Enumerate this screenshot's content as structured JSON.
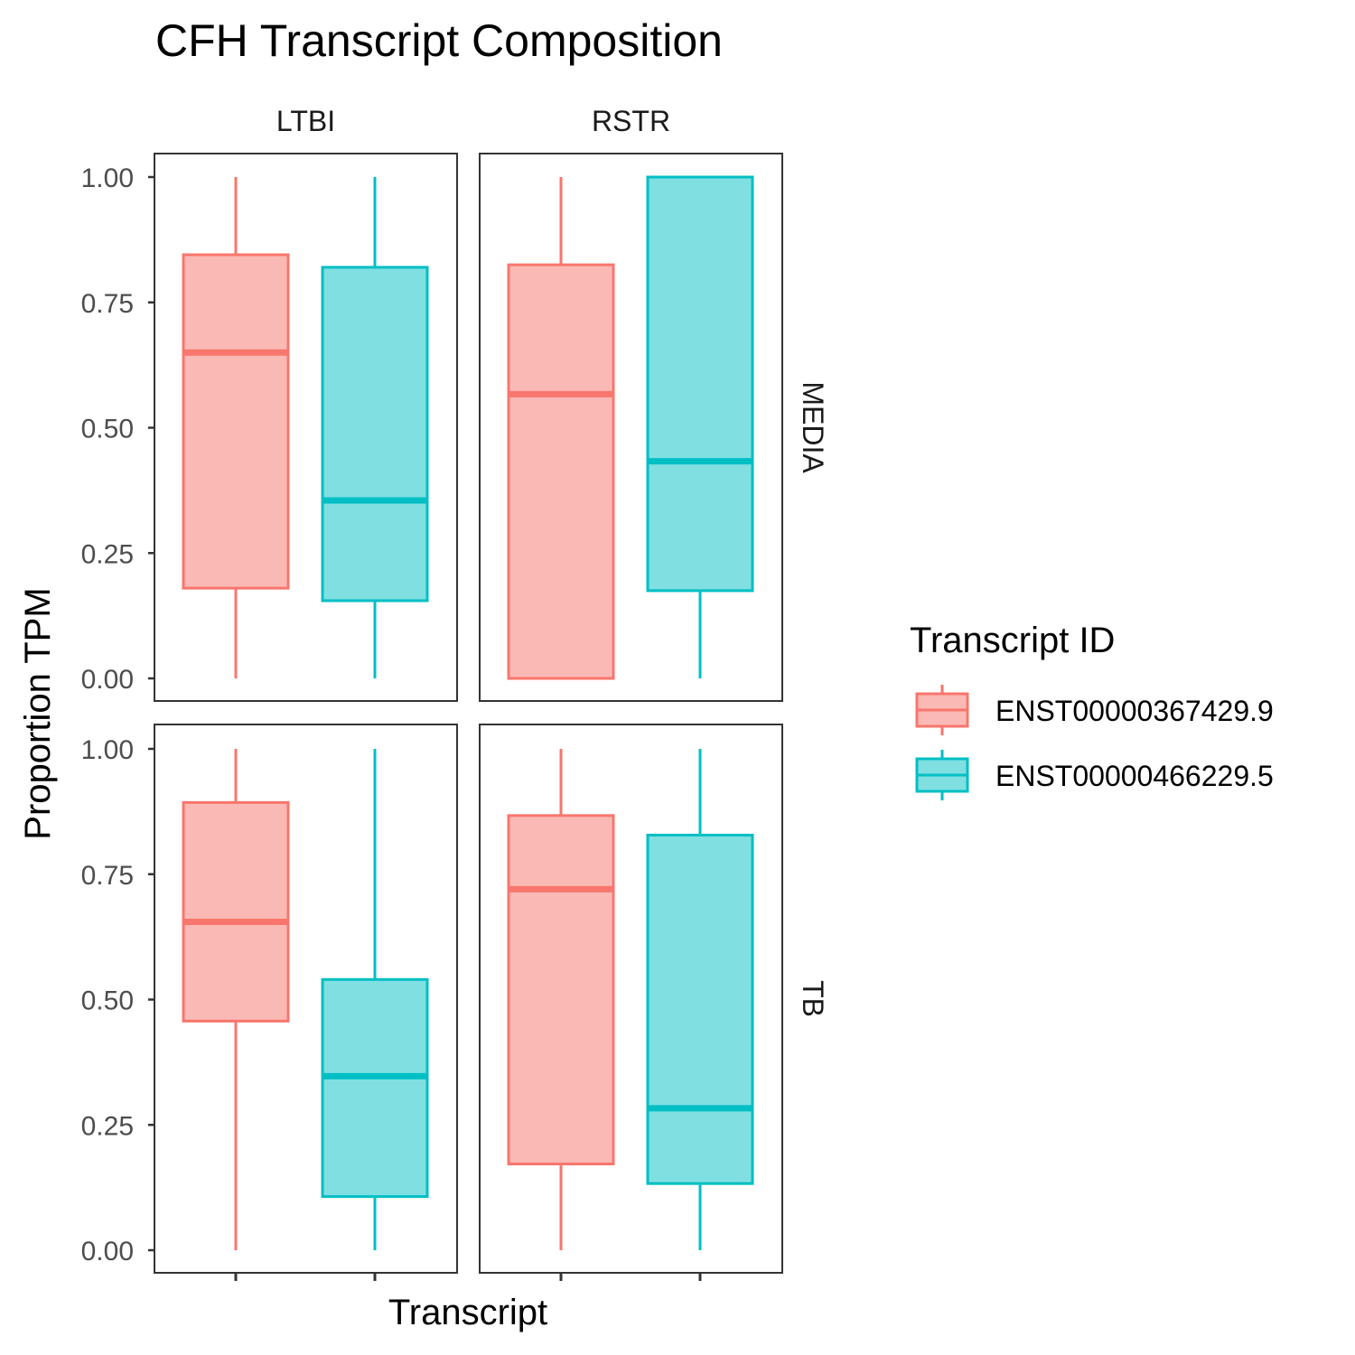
{
  "chart_data": {
    "type": "boxplot",
    "title": "CFH Transcript Composition",
    "xlabel": "Transcript",
    "ylabel": "Proportion TPM",
    "ylim": [
      0,
      1
    ],
    "y_ticks": [
      "0.00",
      "0.25",
      "0.50",
      "0.75",
      "1.00"
    ],
    "y_tick_values": [
      0,
      0.25,
      0.5,
      0.75,
      1.0
    ],
    "facet_cols": [
      "LTBI",
      "RSTR"
    ],
    "facet_rows": [
      "MEDIA",
      "TB"
    ],
    "legend": {
      "title": "Transcript ID",
      "placement": "right",
      "entries": [
        "ENST00000367429.9",
        "ENST00000466229.5"
      ]
    },
    "colors": {
      "ENST00000367429.9": {
        "line": "#F8766D",
        "fill": "#FBB9B5"
      },
      "ENST00000466229.5": {
        "line": "#00BFC4",
        "fill": "#80DFE1"
      }
    },
    "panels": [
      {
        "col": "LTBI",
        "row": "MEDIA",
        "boxes": [
          {
            "series": "ENST00000367429.9",
            "min": 0.0,
            "q1": 0.18,
            "median": 0.65,
            "q3": 0.845,
            "max": 1.0
          },
          {
            "series": "ENST00000466229.5",
            "min": 0.0,
            "q1": 0.155,
            "median": 0.355,
            "q3": 0.82,
            "max": 1.0
          }
        ]
      },
      {
        "col": "RSTR",
        "row": "MEDIA",
        "boxes": [
          {
            "series": "ENST00000367429.9",
            "min": 0.0,
            "q1": 0.0,
            "median": 0.567,
            "q3": 0.825,
            "max": 1.0
          },
          {
            "series": "ENST00000466229.5",
            "min": 0.0,
            "q1": 0.175,
            "median": 0.433,
            "q3": 1.0,
            "max": 1.0
          }
        ]
      },
      {
        "col": "LTBI",
        "row": "TB",
        "boxes": [
          {
            "series": "ENST00000367429.9",
            "min": 0.0,
            "q1": 0.457,
            "median": 0.655,
            "q3": 0.893,
            "max": 1.0
          },
          {
            "series": "ENST00000466229.5",
            "min": 0.0,
            "q1": 0.107,
            "median": 0.347,
            "q3": 0.54,
            "max": 1.0
          }
        ]
      },
      {
        "col": "RSTR",
        "row": "TB",
        "boxes": [
          {
            "series": "ENST00000367429.9",
            "min": 0.0,
            "q1": 0.172,
            "median": 0.72,
            "q3": 0.867,
            "max": 1.0
          },
          {
            "series": "ENST00000466229.5",
            "min": 0.0,
            "q1": 0.133,
            "median": 0.283,
            "q3": 0.828,
            "max": 1.0
          }
        ]
      }
    ]
  }
}
